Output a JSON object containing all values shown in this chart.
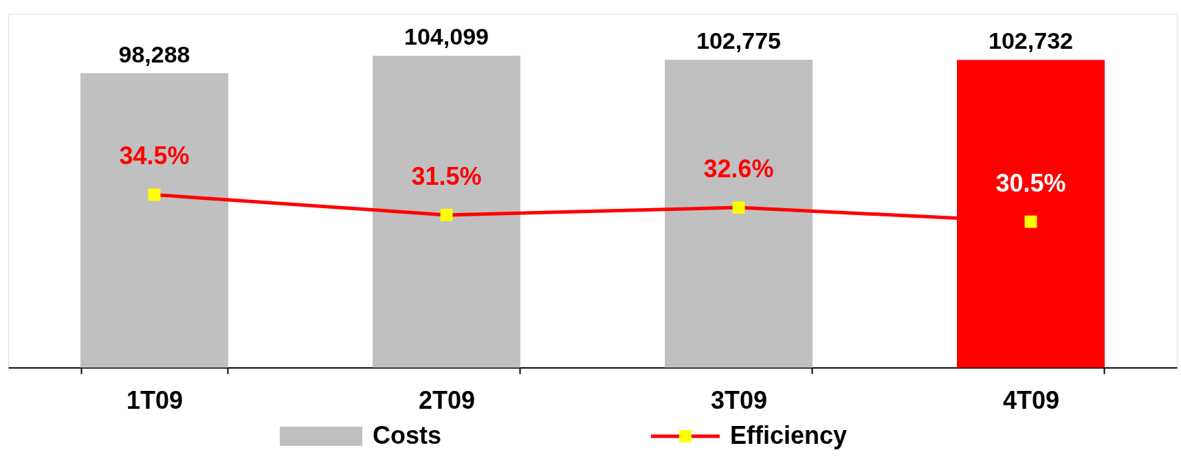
{
  "chart_data": {
    "type": "bar",
    "categories": [
      "1T09",
      "2T09",
      "3T09",
      "4T09"
    ],
    "series": [
      {
        "name": "Costs",
        "color": "#c0c0c0",
        "colors": [
          "#c0c0c0",
          "#c0c0c0",
          "#c0c0c0",
          "#ff0000"
        ],
        "values": [
          98288,
          104099,
          102775,
          102732
        ],
        "value_labels": [
          "98,288",
          "104,099",
          "102,775",
          "102,732"
        ]
      },
      {
        "name": "Efficiency",
        "type": "line",
        "axis": "y2",
        "color": "#ff0000",
        "marker": "square",
        "values": [
          34.5,
          31.5,
          32.6,
          30.5
        ],
        "value_labels": [
          "34.5%",
          "31.5%",
          "32.6%",
          "30.5%"
        ]
      }
    ],
    "tick_labels": "x",
    "legend": "bottom"
  }
}
